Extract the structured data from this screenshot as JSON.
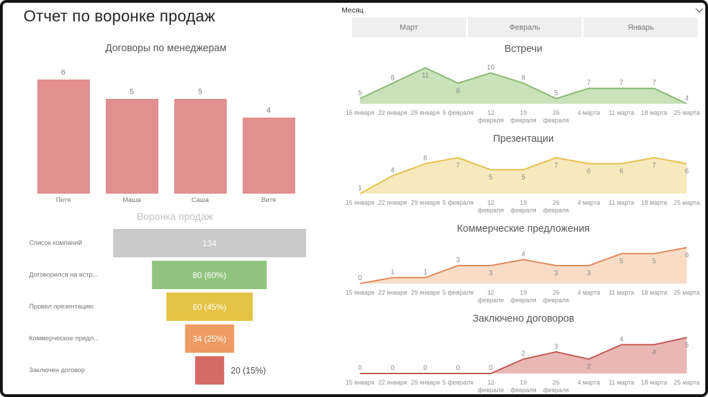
{
  "page": {
    "title": "Отчет по воронке продаж"
  },
  "slicer": {
    "label": "Месяц",
    "buttons": [
      "Март",
      "Февраль",
      "Январь"
    ],
    "button_bg": "#efefef",
    "button_text_color": "#777777"
  },
  "colors": {
    "frame_border": "#141414",
    "title_text": "#252525",
    "chart_title_text": "#565656",
    "axis_label_text": "#919191",
    "data_label_text": "#8a8a8a"
  },
  "chart_data": [
    {
      "id": "contracts_by_manager",
      "type": "bar",
      "title": "Договоры по менеджерам",
      "categories": [
        "Петя",
        "Маша",
        "Саша",
        "Витя"
      ],
      "values": [
        6,
        5,
        5,
        4
      ],
      "bar_color": "#e28f8f",
      "ylim": [
        0,
        6.5
      ],
      "data_labels": true,
      "grid": false,
      "legend": "none"
    },
    {
      "id": "sales_funnel",
      "type": "funnel",
      "title": "Воронка продаж",
      "max_value": 134,
      "stages": [
        {
          "label": "Список компаний",
          "value": 134,
          "value_label": "134",
          "color": "#c9c9c9",
          "label_outside": false
        },
        {
          "label": "Договорился на встр...",
          "value": 80,
          "value_label": "80 (60%)",
          "color": "#90c47e",
          "label_outside": false
        },
        {
          "label": "Провел презентацию",
          "value": 60,
          "value_label": "60 (45%)",
          "color": "#e5c345",
          "label_outside": false
        },
        {
          "label": "Коммерческое предл...",
          "value": 34,
          "value_label": "34 (25%)",
          "color": "#ec9b62",
          "label_outside": false
        },
        {
          "label": "Заключен договор",
          "value": 20,
          "value_label": "20 (15%)",
          "color": "#d66b66",
          "label_outside": true
        }
      ]
    },
    {
      "id": "meetings",
      "type": "area",
      "title": "Встречи",
      "x": [
        "15 января",
        "22 января",
        "29 января",
        "5 февраля",
        "12\nфевраля",
        "19\nфевраля",
        "26\nфевраля",
        "4 марта",
        "11 марта",
        "18 марта",
        "25 марта"
      ],
      "values": [
        5,
        8,
        11,
        8,
        10,
        8,
        5,
        7,
        7,
        7,
        4
      ],
      "ylim": [
        4,
        11
      ],
      "line_color": "#8ab873",
      "fill_color": "#c9e2ba",
      "label_below": [
        2,
        3
      ],
      "grid": false,
      "legend": "none"
    },
    {
      "id": "presentations",
      "type": "area",
      "title": "Презентации",
      "x": [
        "15 января",
        "22 января",
        "29 января",
        "5 февраля",
        "12\nфевраля",
        "19\nфевраля",
        "26\nфевраля",
        "4 марта",
        "11 марта",
        "18 марта",
        "25 марта"
      ],
      "values": [
        1,
        4,
        6,
        7,
        5,
        5,
        7,
        6,
        6,
        7,
        6
      ],
      "ylim": [
        1,
        7
      ],
      "line_color": "#e4c14e",
      "fill_color": "#f6e9bc",
      "label_below": [
        3,
        4,
        5,
        6,
        7,
        8,
        9,
        10
      ],
      "grid": false,
      "legend": "none"
    },
    {
      "id": "commercial_offers",
      "type": "area",
      "title": "Коммерческие предложения",
      "x": [
        "15 января",
        "22 января",
        "29 января",
        "5 февраля",
        "12\nфевраля",
        "19\nфевраля",
        "26\nфевраля",
        "4 марта",
        "11 марта",
        "18 марта",
        "25 марта"
      ],
      "values": [
        0,
        1,
        1,
        3,
        3,
        4,
        3,
        3,
        5,
        5,
        6
      ],
      "ylim": [
        0,
        6
      ],
      "line_color": "#de8a5d",
      "fill_color": "#f8dcc6",
      "label_below": [
        4,
        6,
        7,
        8,
        9,
        10
      ],
      "grid": false,
      "legend": "none"
    },
    {
      "id": "contracts_signed",
      "type": "area",
      "title": "Заключено договоров",
      "x": [
        "15 января",
        "22 января",
        "29 января",
        "5 февраля",
        "12\nфевраля",
        "19\nфевраля",
        "26\nфевраля",
        "4 марта",
        "11 марта",
        "18 марта",
        "25 марта"
      ],
      "values": [
        0,
        0,
        0,
        0,
        0,
        2,
        3,
        2,
        4,
        4,
        5
      ],
      "ylim": [
        0,
        5
      ],
      "line_color": "#c25955",
      "fill_color": "#e9b7b4",
      "label_below": [
        7,
        9,
        10
      ],
      "grid": false,
      "legend": "none"
    }
  ]
}
